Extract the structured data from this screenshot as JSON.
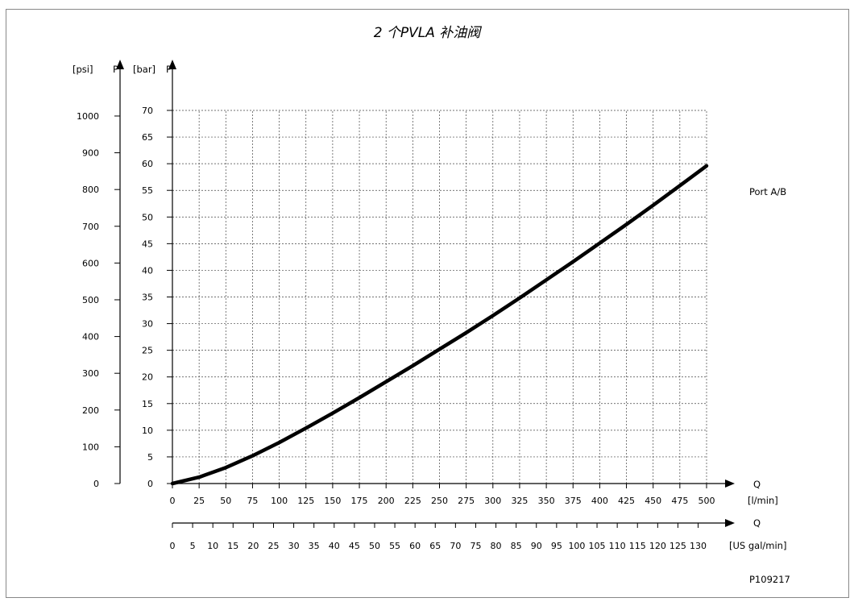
{
  "chart_data": {
    "type": "line",
    "title": "2 个PVLA 补油阀",
    "series": [
      {
        "name": "Port A/B",
        "x": [
          0,
          25,
          50,
          75,
          100,
          125,
          150,
          175,
          200,
          225,
          250,
          275,
          300,
          325,
          350,
          375,
          400,
          425,
          450,
          475,
          500
        ],
        "y": [
          0,
          1.2,
          3.0,
          5.2,
          7.7,
          10.4,
          13.2,
          16.1,
          19.1,
          22.1,
          25.2,
          28.3,
          31.5,
          34.8,
          38.2,
          41.6,
          45.1,
          48.6,
          52.2,
          55.9,
          59.6
        ]
      }
    ],
    "x_axis": {
      "label": "Q",
      "unit": "[l/min]",
      "range": [
        0,
        500
      ],
      "ticks": [
        "0",
        "25",
        "50",
        "75",
        "100",
        "125",
        "150",
        "175",
        "200",
        "225",
        "250",
        "275",
        "300",
        "325",
        "350",
        "375",
        "400",
        "425",
        "450",
        "475",
        "500"
      ]
    },
    "x_axis_secondary": {
      "label": "Q",
      "unit": "[US gal/min]",
      "ticks": [
        "0",
        "5",
        "10",
        "15",
        "20",
        "25",
        "30",
        "35",
        "40",
        "45",
        "50",
        "55",
        "60",
        "65",
        "70",
        "75",
        "80",
        "85",
        "90",
        "95",
        "100",
        "105",
        "110",
        "115",
        "120",
        "125",
        "130"
      ]
    },
    "y_axis": {
      "label": "P",
      "unit": "[bar]",
      "range": [
        0,
        70
      ],
      "ticks": [
        "0",
        "5",
        "10",
        "15",
        "20",
        "25",
        "30",
        "35",
        "40",
        "45",
        "50",
        "55",
        "60",
        "65",
        "70"
      ]
    },
    "y_axis_secondary": {
      "label": "P",
      "unit": "[psi]",
      "ticks": [
        "0",
        "100",
        "200",
        "300",
        "400",
        "500",
        "600",
        "700",
        "800",
        "900",
        "1000"
      ]
    },
    "grid": true,
    "grid_style": "dashed",
    "legend_placement": "right of line end",
    "figure_id": "P109217",
    "colors": {
      "line": "#000000",
      "grid": "#444444",
      "frame": "#888888"
    }
  }
}
